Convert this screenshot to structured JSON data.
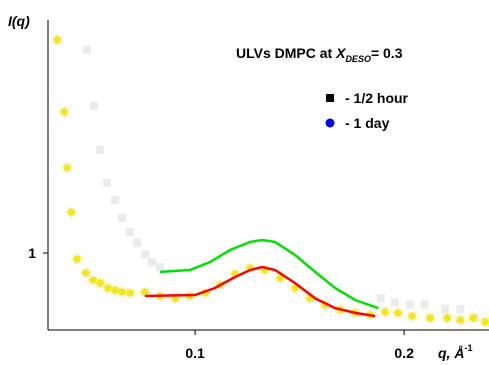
{
  "chart_data": {
    "type": "scatter",
    "title": {
      "text": "ULVs DMPC at ",
      "symbol": "X",
      "subscript": "DESO",
      "suffix": "= 0.3"
    },
    "ylabel": "I(q)",
    "xlabel": "q, Å",
    "xlabel_sup": "-1",
    "xscale": "log",
    "yscale": "log",
    "xlim": [
      0.0614,
      0.265
    ],
    "ylim": [
      0.6,
      4.69
    ],
    "xticks": [
      0.1,
      0.2
    ],
    "yticks": [
      1
    ],
    "legend": "upper right",
    "series": [
      {
        "name": "- 1/2 hour",
        "legend_color": "#000000",
        "color": "#ebebeb",
        "marker": "square",
        "x": [
          0.0699,
          0.0715,
          0.073,
          0.0747,
          0.0767,
          0.0785,
          0.0806,
          0.0825,
          0.0847,
          0.0867,
          0.089,
          0.185,
          0.194,
          0.204,
          0.214,
          0.229,
          0.241,
          0.253
        ],
        "values": [
          3.85,
          2.65,
          1.98,
          1.59,
          1.42,
          1.26,
          1.15,
          1.07,
          0.99,
          0.94,
          0.91,
          0.74,
          0.72,
          0.71,
          0.71,
          0.69,
          0.69,
          0.65
        ]
      },
      {
        "name": "- 1 day",
        "legend_color": "#0000ff",
        "color": "#f5e61a",
        "marker": "star",
        "x": [
          0.0633,
          0.0648,
          0.0654,
          0.0663,
          0.0676,
          0.0696,
          0.0713,
          0.073,
          0.0749,
          0.0767,
          0.0785,
          0.0806,
          0.0847,
          0.089,
          0.0936,
          0.0983,
          0.1034,
          0.1086,
          0.1142,
          0.12,
          0.1261,
          0.1326,
          0.1393,
          0.1464,
          0.1539,
          0.1618,
          0.17,
          0.1786,
          0.1878,
          0.196,
          0.2054,
          0.218,
          0.2307,
          0.241,
          0.2514,
          0.2617
        ],
        "values": [
          4.11,
          2.55,
          1.76,
          1.31,
          0.96,
          0.876,
          0.836,
          0.819,
          0.793,
          0.782,
          0.772,
          0.767,
          0.772,
          0.752,
          0.74,
          0.752,
          0.767,
          0.809,
          0.87,
          0.906,
          0.893,
          0.847,
          0.793,
          0.74,
          0.708,
          0.686,
          0.672,
          0.663,
          0.676,
          0.672,
          0.658,
          0.65,
          0.65,
          0.641,
          0.65,
          0.633
        ]
      },
      {
        "color": "#00e000",
        "marker": "none",
        "x": [
          0.089,
          0.0983,
          0.1051,
          0.1123,
          0.12,
          0.1249,
          0.1304,
          0.1393,
          0.1489,
          0.1591,
          0.17,
          0.1835
        ],
        "values": [
          0.882,
          0.893,
          0.942,
          1.02,
          1.076,
          1.09,
          1.076,
          0.987,
          0.882,
          0.793,
          0.732,
          0.694
        ]
      },
      {
        "color": "#ff0000",
        "marker": "none",
        "x": [
          0.0847,
          0.1,
          0.1068,
          0.1142,
          0.12,
          0.1249,
          0.1304,
          0.1393,
          0.1489,
          0.1591,
          0.17,
          0.1817
        ],
        "values": [
          0.752,
          0.757,
          0.793,
          0.853,
          0.893,
          0.911,
          0.893,
          0.819,
          0.74,
          0.694,
          0.672,
          0.658
        ]
      }
    ]
  }
}
